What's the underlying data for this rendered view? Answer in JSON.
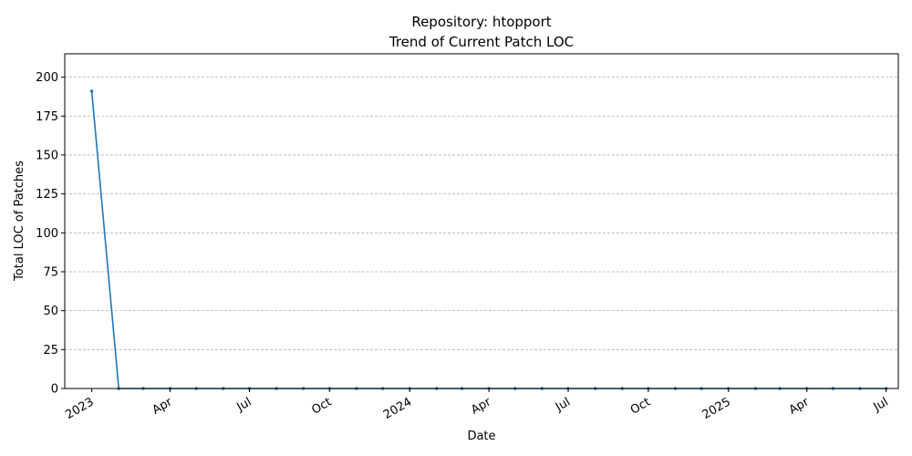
{
  "chart_data": {
    "type": "line",
    "title": "Repository: htopport",
    "subtitle": "Trend of Current Patch LOC",
    "xlabel": "Date",
    "ylabel": "Total LOC of Patches",
    "xlim": [
      "2022-12-01",
      "2025-07-15"
    ],
    "ylim": [
      0,
      215
    ],
    "yticks": [
      0,
      25,
      50,
      75,
      100,
      125,
      150,
      175,
      200
    ],
    "xticks": [
      {
        "date": "2023-01-01",
        "label": "2023"
      },
      {
        "date": "2023-04-01",
        "label": "Apr"
      },
      {
        "date": "2023-07-01",
        "label": "Jul"
      },
      {
        "date": "2023-10-01",
        "label": "Oct"
      },
      {
        "date": "2024-01-01",
        "label": "2024"
      },
      {
        "date": "2024-04-01",
        "label": "Apr"
      },
      {
        "date": "2024-07-01",
        "label": "Jul"
      },
      {
        "date": "2024-10-01",
        "label": "Oct"
      },
      {
        "date": "2025-01-01",
        "label": "2025"
      },
      {
        "date": "2025-04-01",
        "label": "Apr"
      },
      {
        "date": "2025-07-01",
        "label": "Jul"
      }
    ],
    "grid": "y",
    "line_color": "#1f77b4",
    "series": [
      {
        "x": [
          "2023-01-01",
          "2023-02-01",
          "2023-03-01",
          "2023-04-01",
          "2023-05-01",
          "2023-06-01",
          "2023-07-01",
          "2023-08-01",
          "2023-09-01",
          "2023-10-01",
          "2023-11-01",
          "2023-12-01",
          "2024-01-01",
          "2024-02-01",
          "2024-03-01",
          "2024-04-01",
          "2024-05-01",
          "2024-06-01",
          "2024-07-01",
          "2024-08-01",
          "2024-09-01",
          "2024-10-01",
          "2024-11-01",
          "2024-12-01",
          "2025-01-01",
          "2025-02-01",
          "2025-03-01",
          "2025-04-01",
          "2025-05-01",
          "2025-06-01",
          "2025-07-01"
        ],
        "y": [
          191,
          0,
          0,
          0,
          0,
          0,
          0,
          0,
          0,
          0,
          0,
          0,
          0,
          0,
          0,
          0,
          0,
          0,
          0,
          0,
          0,
          0,
          0,
          0,
          0,
          0,
          0,
          0,
          0,
          0,
          0
        ]
      }
    ]
  }
}
